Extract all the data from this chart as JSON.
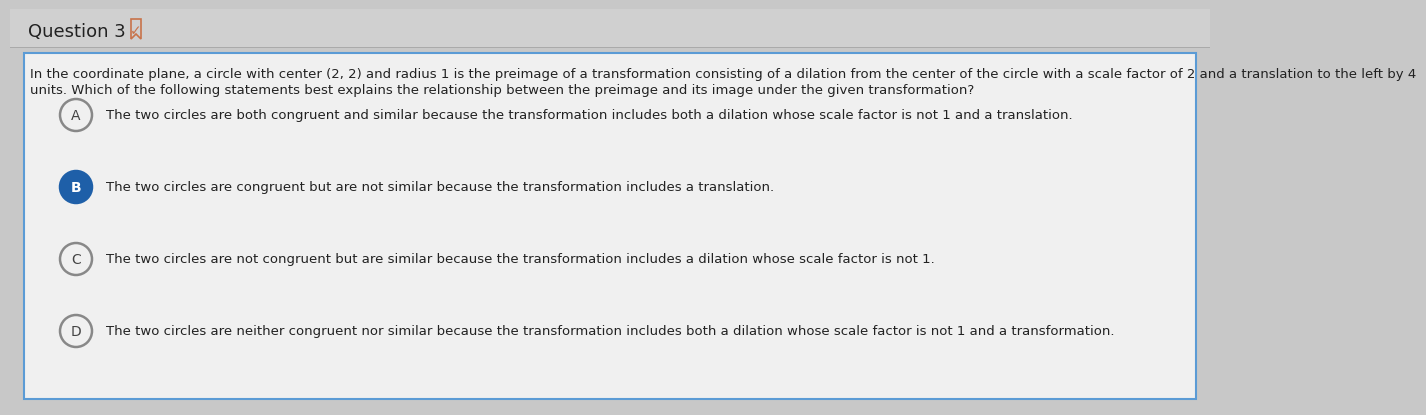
{
  "title": "Question 3",
  "title_fontsize": 13,
  "title_color": "#222222",
  "page_background": "#c8c8c8",
  "header_background": "#d0d0d0",
  "content_background": "#f0f0f0",
  "content_border_color": "#5b9bd5",
  "header_line_color": "#aaaaaa",
  "bookmark_color": "#c8734a",
  "question_text_line1": "In the coordinate plane, a circle with center (2, 2) and radius 1 is the preimage of a transformation consisting of a dilation from the center of the circle with a scale factor of 2 and a translation to the left by 4",
  "question_text_line2": "units. Which of the following statements best explains the relationship between the preimage and its image under the given transformation?",
  "question_fontsize": 9.5,
  "question_color": "#222222",
  "options": [
    {
      "letter": "A",
      "text": "The two circles are both congruent and similar because the transformation includes both a dilation whose scale factor is not 1 and a translation.",
      "selected": false,
      "circle_fill": "#f0f0f0",
      "circle_edge": "#888888",
      "letter_color": "#444444"
    },
    {
      "letter": "B",
      "text": "The two circles are congruent but are not similar because the transformation includes a translation.",
      "selected": true,
      "circle_fill": "#1e5fa8",
      "circle_edge": "#1e5fa8",
      "letter_color": "#ffffff"
    },
    {
      "letter": "C",
      "text": "The two circles are not congruent but are similar because the transformation includes a dilation whose scale factor is not 1.",
      "selected": false,
      "circle_fill": "#f0f0f0",
      "circle_edge": "#888888",
      "letter_color": "#444444"
    },
    {
      "letter": "D",
      "text": "The two circles are neither congruent nor similar because the transformation includes both a dilation whose scale factor is not 1 and a transformation.",
      "selected": false,
      "circle_fill": "#f0f0f0",
      "circle_edge": "#888888",
      "letter_color": "#444444"
    }
  ],
  "option_fontsize": 9.5,
  "option_text_color": "#222222"
}
